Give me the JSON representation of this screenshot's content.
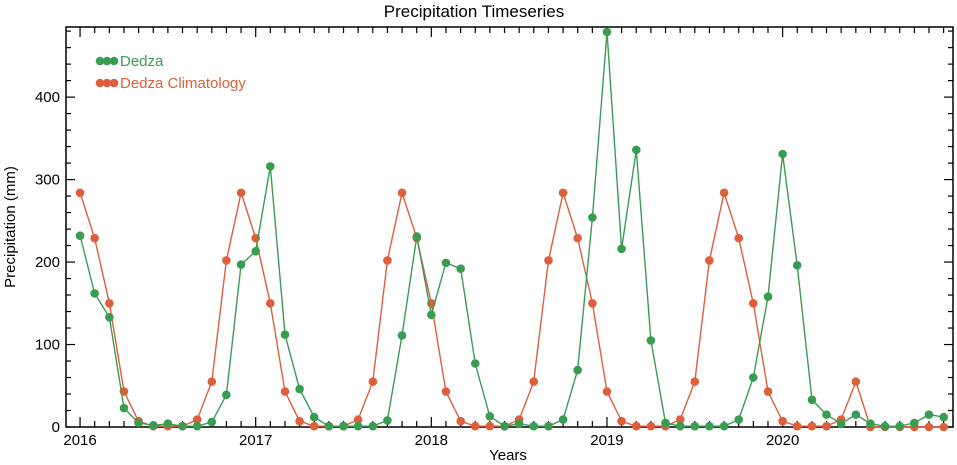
{
  "chart_data": {
    "type": "line",
    "title": "Precipitation Timeseries",
    "xlabel": "Years",
    "ylabel": "Precipitation (mm)",
    "xlim": [
      2015.92,
      2020.97
    ],
    "ylim": [
      0,
      485
    ],
    "x_ticks": [
      2016,
      2017,
      2018,
      2019,
      2020
    ],
    "y_ticks": [
      0,
      100,
      200,
      300,
      400
    ],
    "legend_position": "top-left",
    "grid": false,
    "series": [
      {
        "name": "Dedza",
        "color": "#3a9c52",
        "x": [
          2016.0,
          2016.083,
          2016.167,
          2016.25,
          2016.333,
          2016.417,
          2016.5,
          2016.583,
          2016.667,
          2016.75,
          2016.833,
          2016.917,
          2017.0,
          2017.083,
          2017.167,
          2017.25,
          2017.333,
          2017.417,
          2017.5,
          2017.583,
          2017.667,
          2017.75,
          2017.833,
          2017.917,
          2018.0,
          2018.083,
          2018.167,
          2018.25,
          2018.333,
          2018.417,
          2018.5,
          2018.583,
          2018.667,
          2018.75,
          2018.833,
          2018.917,
          2019.0,
          2019.083,
          2019.167,
          2019.25,
          2019.333,
          2019.417,
          2019.5,
          2019.583,
          2019.667,
          2019.75,
          2019.833,
          2019.917,
          2020.0,
          2020.083,
          2020.167,
          2020.25,
          2020.333,
          2020.417,
          2020.5,
          2020.583,
          2020.667,
          2020.75,
          2020.833,
          2020.917
        ],
        "y": [
          232,
          162,
          133,
          23,
          5,
          2,
          4,
          1,
          1,
          6,
          39,
          197,
          213,
          316,
          112,
          46,
          12,
          1,
          1,
          1,
          1,
          8,
          111,
          231,
          136,
          199,
          192,
          77,
          13,
          1,
          4,
          1,
          1,
          9,
          69,
          254,
          479,
          216,
          336,
          105,
          5,
          1,
          1,
          1,
          1,
          9,
          60,
          158,
          331,
          196,
          33,
          15,
          4,
          15,
          4,
          1,
          1,
          5,
          15,
          12
        ]
      },
      {
        "name": "Dedza Climatology",
        "color": "#dd5f3c",
        "x": [
          2016.0,
          2016.083,
          2016.167,
          2016.25,
          2016.333,
          2016.417,
          2016.5,
          2016.583,
          2016.667,
          2016.75,
          2016.833,
          2016.917,
          2017.0,
          2017.083,
          2017.167,
          2017.25,
          2017.333,
          2017.417,
          2017.5,
          2017.583,
          2017.667,
          2017.75,
          2017.833,
          2017.917,
          2018.0,
          2018.083,
          2018.167,
          2018.25,
          2018.333,
          2018.417,
          2018.5,
          2018.583,
          2018.667,
          2018.75,
          2018.833,
          2018.917,
          2019.0,
          2019.083,
          2019.167,
          2019.25,
          2019.333,
          2019.417,
          2019.5,
          2019.583,
          2019.667,
          2019.75,
          2019.833,
          2019.917,
          2020.0,
          2020.083,
          2020.167,
          2020.25,
          2020.333,
          2020.417,
          2020.5,
          2020.583,
          2020.667,
          2020.75,
          2020.833,
          2020.917
        ],
        "y": [
          284,
          229,
          150,
          43,
          7,
          1,
          1,
          1,
          9,
          55,
          202,
          284,
          229,
          150,
          43,
          7,
          1,
          1,
          1,
          9,
          55,
          202,
          284,
          229,
          150,
          43,
          7,
          1,
          1,
          1,
          9,
          55,
          202,
          284,
          229,
          150,
          43,
          7,
          1,
          1,
          1,
          9,
          55,
          202,
          284,
          229,
          150,
          43,
          7,
          1,
          1,
          1,
          9,
          55,
          0,
          0,
          0,
          0,
          0,
          0
        ]
      }
    ]
  }
}
